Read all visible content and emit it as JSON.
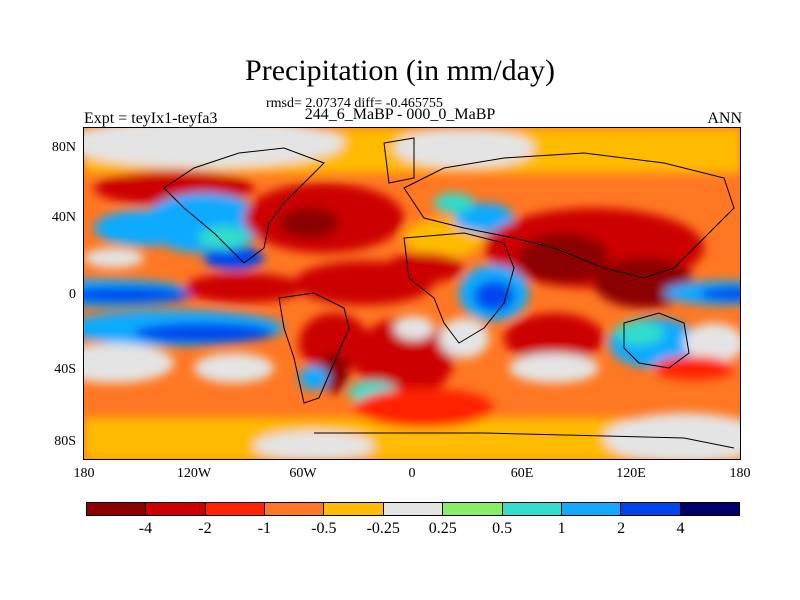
{
  "title": "Precipitation (in mm/day)",
  "stats": "rmsd= 2.07374 diff= -0.465755",
  "subtitle": "244_6_MaBP - 000_0_MaBP",
  "experiment": "Expt = teyIx1-teyfa3",
  "season": "ANN",
  "lat_labels": [
    "80N",
    "40N",
    "0",
    "40S",
    "80S"
  ],
  "lon_labels": [
    "180",
    "120W",
    "60W",
    "0",
    "60E",
    "120E",
    "180"
  ],
  "colorbar": {
    "colors": [
      "#8b0000",
      "#cc0000",
      "#ff2200",
      "#ff7722",
      "#ffbb00",
      "#e4e4e4",
      "#88ee66",
      "#33ddcc",
      "#11aaff",
      "#0044ee",
      "#00006e"
    ],
    "labels": [
      "-4",
      "-2",
      "-1",
      "-0.5",
      "-0.25",
      "0.25",
      "0.5",
      "1",
      "2",
      "4"
    ]
  }
}
